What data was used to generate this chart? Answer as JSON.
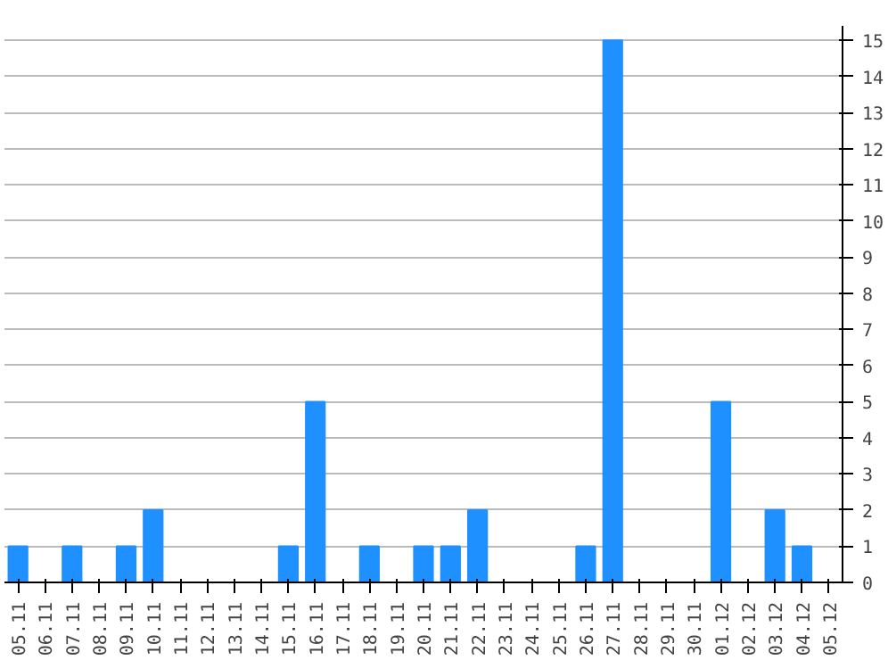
{
  "chart_data": {
    "type": "bar",
    "categories": [
      "05.11",
      "06.11",
      "07.11",
      "08.11",
      "09.11",
      "10.11",
      "11.11",
      "12.11",
      "13.11",
      "14.11",
      "15.11",
      "16.11",
      "17.11",
      "18.11",
      "19.11",
      "20.11",
      "21.11",
      "22.11",
      "23.11",
      "24.11",
      "25.11",
      "26.11",
      "27.11",
      "28.11",
      "29.11",
      "30.11",
      "01.12",
      "02.12",
      "03.12",
      "04.12",
      "05.12"
    ],
    "values": [
      1,
      0,
      1,
      0,
      1,
      2,
      0,
      0,
      0,
      0,
      1,
      5,
      0,
      1,
      0,
      1,
      1,
      2,
      0,
      0,
      0,
      1,
      15,
      0,
      0,
      0,
      5,
      0,
      2,
      1,
      0
    ],
    "color": "#1e90ff",
    "ylim": [
      0,
      15.4
    ],
    "yticks": [
      0,
      1,
      2,
      3,
      4,
      5,
      6,
      7,
      8,
      9,
      10,
      11,
      12,
      13,
      14,
      15
    ],
    "grid": "y"
  }
}
